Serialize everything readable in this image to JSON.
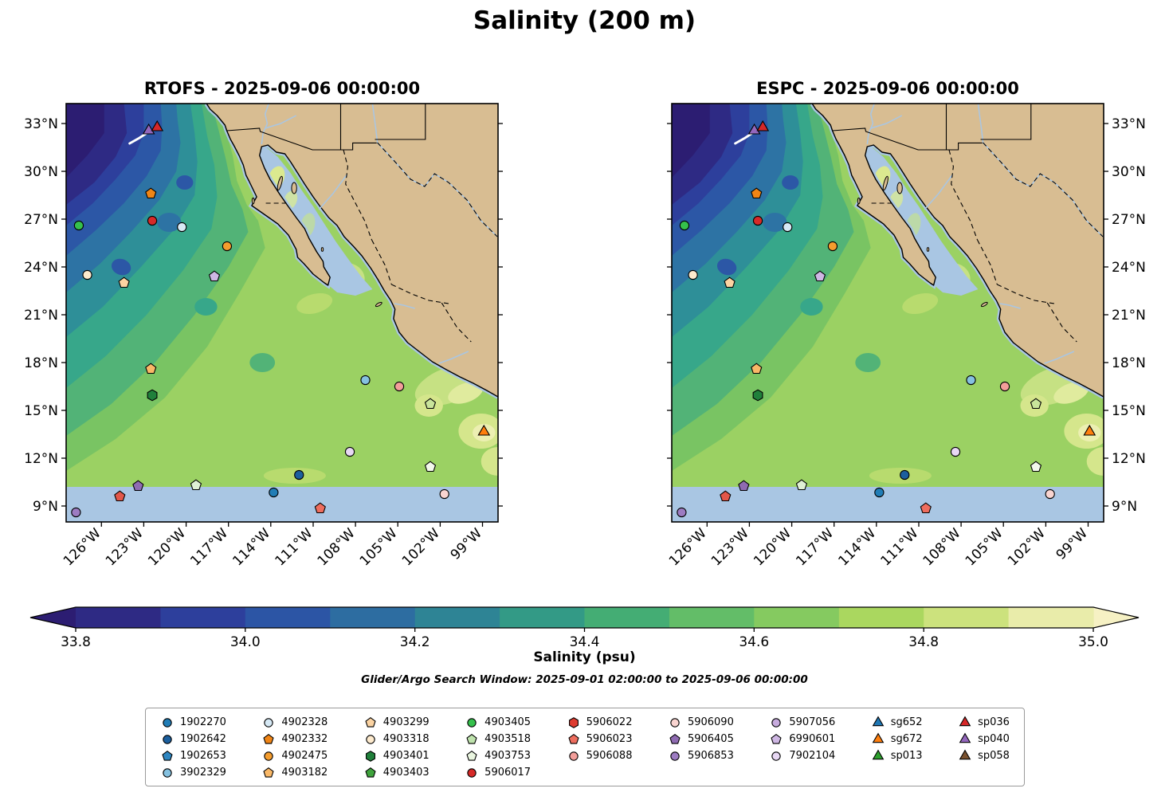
{
  "figure": {
    "title": "Salinity (200 m)",
    "colorbar_label": "Salinity (psu)",
    "search_window_note": "Glider/Argo Search Window: 2025-09-01 02:00:00 to 2025-09-06 00:00:00"
  },
  "subplots": [
    {
      "title": "RTOFS - 2025-09-06 00:00:00",
      "y_labels_side": "left"
    },
    {
      "title": "ESPC - 2025-09-06 00:00:00",
      "y_labels_side": "right"
    }
  ],
  "axes": {
    "lon_tick_labels": [
      "126°W",
      "123°W",
      "120°W",
      "117°W",
      "114°W",
      "111°W",
      "108°W",
      "105°W",
      "102°W",
      "99°W"
    ],
    "lon_tick_values": [
      -126,
      -123,
      -120,
      -117,
      -114,
      -111,
      -108,
      -105,
      -102,
      -99
    ],
    "lat_tick_labels": [
      "33°N",
      "30°N",
      "27°N",
      "24°N",
      "21°N",
      "18°N",
      "15°N",
      "12°N",
      "9°N"
    ],
    "lat_tick_values": [
      33,
      30,
      27,
      24,
      21,
      18,
      15,
      12,
      9
    ]
  },
  "colorbar": {
    "tick_labels": [
      "33.8",
      "34.0",
      "34.2",
      "34.4",
      "34.6",
      "34.8",
      "35.0"
    ],
    "tick_values": [
      33.8,
      34.0,
      34.2,
      34.4,
      34.6,
      34.8,
      35.0
    ],
    "min": 33.8,
    "max": 35.0,
    "segment_colors": [
      "#2e2a84",
      "#2d3f9c",
      "#2c55a5",
      "#2d6da1",
      "#2e8495",
      "#339a86",
      "#44ad74",
      "#63bd68",
      "#85ca60",
      "#aad75f",
      "#cce27d",
      "#e9ecaa"
    ],
    "under_color": "#2c1d72",
    "over_color": "#f6f1c4",
    "land_color": "#d8bd92",
    "mask_color": "#a9c6e3"
  },
  "legend": {
    "columns": [
      [
        {
          "id": "1902270",
          "shape": "circle",
          "color": "#217db6"
        },
        {
          "id": "1902642",
          "shape": "circle",
          "color": "#1c5f9e"
        },
        {
          "id": "1902653",
          "shape": "pentagon",
          "color": "#2e86c1"
        },
        {
          "id": "3902329",
          "shape": "circle",
          "color": "#85c1e0"
        }
      ],
      [
        {
          "id": "4902328",
          "shape": "circle",
          "color": "#d6e9f5"
        },
        {
          "id": "4902332",
          "shape": "pentagon",
          "color": "#f08516"
        },
        {
          "id": "4902475",
          "shape": "circle",
          "color": "#f59d2e"
        },
        {
          "id": "4903182",
          "shape": "pentagon",
          "color": "#f9b867"
        }
      ],
      [
        {
          "id": "4903299",
          "shape": "pentagon",
          "color": "#fbd3a2"
        },
        {
          "id": "4903318",
          "shape": "circle",
          "color": "#fdeacd"
        },
        {
          "id": "4903401",
          "shape": "hexagon",
          "color": "#20803b"
        },
        {
          "id": "4903403",
          "shape": "pentagon",
          "color": "#3fa33c"
        }
      ],
      [
        {
          "id": "4903405",
          "shape": "circle",
          "color": "#35c04c"
        },
        {
          "id": "4903518",
          "shape": "pentagon",
          "color": "#bfe3ad"
        },
        {
          "id": "4903753",
          "shape": "pentagon",
          "color": "#eaf6e0"
        },
        {
          "id": "5906017",
          "shape": "circle",
          "color": "#d62a28"
        }
      ],
      [
        {
          "id": "5906022",
          "shape": "hexagon",
          "color": "#de3b30"
        },
        {
          "id": "5906023",
          "shape": "pentagon",
          "color": "#ee6d5e"
        },
        {
          "id": "5906088",
          "shape": "circle",
          "color": "#f39e9a"
        }
      ],
      [
        {
          "id": "5906090",
          "shape": "circle",
          "color": "#f9d4d0"
        },
        {
          "id": "5906405",
          "shape": "pentagon",
          "color": "#8f6bb2"
        },
        {
          "id": "5906853",
          "shape": "circle",
          "color": "#9d7cc2"
        }
      ],
      [
        {
          "id": "5907056",
          "shape": "circle",
          "color": "#c7abde"
        },
        {
          "id": "6990601",
          "shape": "pentagon",
          "color": "#cfb7e4"
        },
        {
          "id": "7902104",
          "shape": "circle",
          "color": "#e8d8f4"
        }
      ],
      [
        {
          "id": "sg652",
          "shape": "triangle",
          "color": "#1f77b4"
        },
        {
          "id": "sg672",
          "shape": "triangle",
          "color": "#ff7f0e"
        },
        {
          "id": "sp013",
          "shape": "triangle",
          "color": "#2ca02c"
        }
      ],
      [
        {
          "id": "sp036",
          "shape": "triangle",
          "color": "#d62728"
        },
        {
          "id": "sp040",
          "shape": "triangle",
          "color": "#9467bd"
        },
        {
          "id": "sp058",
          "shape": "triangle",
          "color": "#7a5230"
        }
      ]
    ]
  },
  "chart_data": {
    "type": "heatmap",
    "title": "Salinity (200 m)",
    "variable": "Salinity (psu)",
    "depth": "200 m",
    "subplot_titles": [
      "RTOFS - 2025-09-06 00:00:00",
      "ESPC - 2025-09-06 00:00:00"
    ],
    "x_tick_labels": [
      "126°W",
      "123°W",
      "120°W",
      "117°W",
      "114°W",
      "111°W",
      "108°W",
      "105°W",
      "102°W",
      "99°W"
    ],
    "y_tick_labels": [
      "33°N",
      "30°N",
      "27°N",
      "24°N",
      "21°N",
      "18°N",
      "15°N",
      "12°N",
      "9°N"
    ],
    "lon_range": [
      -128.5,
      -97.9
    ],
    "lat_range": [
      8.0,
      34.3
    ],
    "colorbar": {
      "label": "Salinity (psu)",
      "min": 33.8,
      "max": 35.0,
      "tick_values": [
        33.8,
        34.0,
        34.2,
        34.4,
        34.6,
        34.8,
        35.0
      ],
      "extend": "both"
    },
    "field_summary": "Salinity at 200 m increases southeastward from ~33.8 psu (dark purple, NW corner) to ~34.9-35.0 psu (yellow-green along the Mexican coast and south of 18N). Gulf of California interior and ocean south of ~10N are flat light blue (masked). Same pattern shown for RTOFS (left) and ESPC (right) models.",
    "glider_track": {
      "color": "#ffffff",
      "points": [
        [
          -124.0,
          31.75
        ],
        [
          -123.3,
          32.1
        ],
        [
          -122.7,
          32.45
        ]
      ]
    },
    "platform_positions": [
      {
        "lon": -122.5,
        "lat": 28.6,
        "shape": "pentagon",
        "color": "#f08516"
      },
      {
        "lon": -127.6,
        "lat": 26.6,
        "shape": "circle",
        "color": "#35c04c"
      },
      {
        "lon": -122.4,
        "lat": 26.9,
        "shape": "circle",
        "color": "#d62a28"
      },
      {
        "lon": -120.3,
        "lat": 26.5,
        "shape": "circle",
        "color": "#d6e9f5"
      },
      {
        "lon": -117.1,
        "lat": 25.3,
        "shape": "circle",
        "color": "#f59d2e"
      },
      {
        "lon": -127.0,
        "lat": 23.5,
        "shape": "circle",
        "color": "#fdeacd"
      },
      {
        "lon": -124.4,
        "lat": 23.0,
        "shape": "pentagon",
        "color": "#fbd3a2"
      },
      {
        "lon": -118.0,
        "lat": 23.4,
        "shape": "pentagon",
        "color": "#cfb7e4"
      },
      {
        "lon": -122.5,
        "lat": 17.6,
        "shape": "pentagon",
        "color": "#f9b867"
      },
      {
        "lon": -122.4,
        "lat": 15.95,
        "shape": "hexagon",
        "color": "#20803b"
      },
      {
        "lon": -107.3,
        "lat": 16.9,
        "shape": "circle",
        "color": "#85c1e0"
      },
      {
        "lon": -104.9,
        "lat": 16.5,
        "shape": "circle",
        "color": "#f39e9a"
      },
      {
        "lon": -102.7,
        "lat": 15.4,
        "shape": "pentagon",
        "color": "#c9e49b"
      },
      {
        "lon": -108.4,
        "lat": 12.4,
        "shape": "circle",
        "color": "#e8d8f4"
      },
      {
        "lon": -102.7,
        "lat": 11.45,
        "shape": "pentagon",
        "color": "#f2f8ec"
      },
      {
        "lon": -112.0,
        "lat": 10.95,
        "shape": "circle",
        "color": "#1c5f9e"
      },
      {
        "lon": -123.4,
        "lat": 10.25,
        "shape": "pentagon",
        "color": "#8f6bb2"
      },
      {
        "lon": -119.3,
        "lat": 10.3,
        "shape": "pentagon",
        "color": "#dff0d4"
      },
      {
        "lon": -124.7,
        "lat": 9.6,
        "shape": "pentagon",
        "color": "#e2574a"
      },
      {
        "lon": -113.8,
        "lat": 9.85,
        "shape": "circle",
        "color": "#217db6"
      },
      {
        "lon": -110.5,
        "lat": 8.85,
        "shape": "pentagon",
        "color": "#ee6d5e"
      },
      {
        "lon": -101.7,
        "lat": 9.75,
        "shape": "circle",
        "color": "#f9d4d0"
      },
      {
        "lon": -127.8,
        "lat": 8.6,
        "shape": "circle",
        "color": "#9d7cc2"
      },
      {
        "lon": -98.9,
        "lat": 13.65,
        "shape": "triangle",
        "color": "#ff7f0e"
      },
      {
        "lon": -122.65,
        "lat": 32.55,
        "shape": "triangle",
        "color": "#9467bd"
      },
      {
        "lon": -122.05,
        "lat": 32.75,
        "shape": "triangle",
        "color": "#d62728"
      }
    ]
  }
}
